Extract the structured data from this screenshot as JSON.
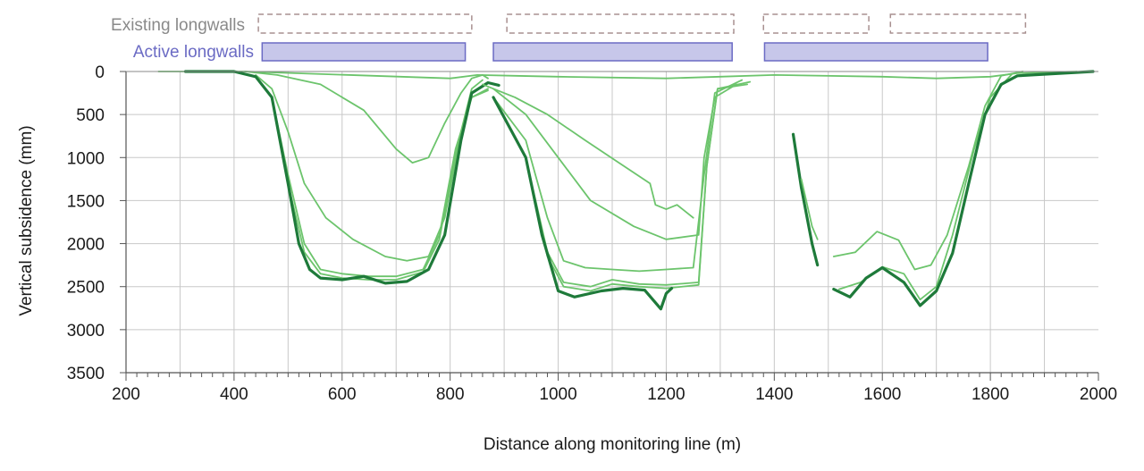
{
  "chart_data": {
    "type": "line",
    "title": "",
    "xlabel": "Distance along monitoring line (m)",
    "ylabel": "Vertical subsidence (mm)",
    "xlim": [
      200,
      2000
    ],
    "ylim": [
      0,
      3500
    ],
    "y_inverted": true,
    "grid": true,
    "x_ticks": [
      "200",
      "400",
      "600",
      "800",
      "1000",
      "1200",
      "1400",
      "1600",
      "1800",
      "2000"
    ],
    "y_ticks": [
      "0",
      "500",
      "1000",
      "1500",
      "2000",
      "2500",
      "3000",
      "3500"
    ],
    "legend": {
      "existing_label": "Existing longwalls",
      "active_label": "Active longwalls"
    },
    "existing_longwalls": [
      [
        445,
        840
      ],
      [
        905,
        1325
      ],
      [
        1380,
        1575
      ],
      [
        1615,
        1865
      ]
    ],
    "active_longwalls": [
      [
        452,
        828
      ],
      [
        880,
        1322
      ],
      [
        1382,
        1795
      ]
    ],
    "colors": {
      "existing_text": "#8a8a8a",
      "existing_box": "#a89090",
      "active_text": "#6b6bc4",
      "active_fill": "#c7c7ea",
      "active_stroke": "#6b6bc4",
      "light_green": "#6cc46c",
      "dark_green": "#1e7a3a",
      "grid": "#c8c8c8"
    },
    "series": [
      {
        "style": "light",
        "points": [
          [
            260,
            0
          ],
          [
            420,
            0
          ],
          [
            800,
            80
          ],
          [
            850,
            40
          ],
          [
            920,
            50
          ],
          [
            1000,
            60
          ],
          [
            1200,
            80
          ],
          [
            1300,
            60
          ],
          [
            1400,
            40
          ],
          [
            1600,
            60
          ],
          [
            1700,
            80
          ],
          [
            1800,
            60
          ],
          [
            1850,
            20
          ],
          [
            1960,
            0
          ]
        ]
      },
      {
        "style": "light",
        "points": [
          [
            420,
            0
          ],
          [
            480,
            40
          ],
          [
            560,
            150
          ],
          [
            640,
            450
          ],
          [
            700,
            900
          ],
          [
            730,
            1060
          ],
          [
            760,
            1000
          ],
          [
            790,
            600
          ],
          [
            820,
            250
          ],
          [
            840,
            80
          ],
          [
            860,
            40
          ],
          [
            870,
            80
          ]
        ]
      },
      {
        "style": "light",
        "points": [
          [
            440,
            40
          ],
          [
            470,
            200
          ],
          [
            500,
            700
          ],
          [
            530,
            1300
          ],
          [
            570,
            1700
          ],
          [
            620,
            1950
          ],
          [
            680,
            2150
          ],
          [
            720,
            2200
          ],
          [
            760,
            2150
          ],
          [
            790,
            1700
          ],
          [
            820,
            700
          ],
          [
            840,
            200
          ],
          [
            860,
            100
          ]
        ]
      },
      {
        "style": "light",
        "points": [
          [
            440,
            60
          ],
          [
            470,
            300
          ],
          [
            500,
            1200
          ],
          [
            530,
            2000
          ],
          [
            560,
            2300
          ],
          [
            600,
            2350
          ],
          [
            650,
            2380
          ],
          [
            700,
            2380
          ],
          [
            750,
            2300
          ],
          [
            780,
            1900
          ],
          [
            810,
            900
          ],
          [
            840,
            300
          ],
          [
            870,
            200
          ]
        ]
      },
      {
        "style": "light",
        "points": [
          [
            440,
            60
          ],
          [
            470,
            300
          ],
          [
            500,
            1300
          ],
          [
            530,
            2100
          ],
          [
            560,
            2350
          ],
          [
            600,
            2400
          ],
          [
            650,
            2420
          ],
          [
            700,
            2420
          ],
          [
            750,
            2330
          ],
          [
            780,
            1950
          ],
          [
            810,
            950
          ],
          [
            840,
            300
          ],
          [
            870,
            220
          ]
        ]
      },
      {
        "style": "dark",
        "points": [
          [
            310,
            0
          ],
          [
            400,
            0
          ],
          [
            440,
            60
          ],
          [
            470,
            300
          ],
          [
            500,
            1300
          ],
          [
            520,
            2000
          ],
          [
            540,
            2300
          ],
          [
            560,
            2400
          ],
          [
            600,
            2420
          ],
          [
            640,
            2380
          ],
          [
            680,
            2460
          ],
          [
            720,
            2440
          ],
          [
            760,
            2300
          ],
          [
            790,
            1900
          ],
          [
            820,
            800
          ],
          [
            840,
            250
          ],
          [
            870,
            130
          ],
          [
            890,
            160
          ]
        ]
      },
      {
        "style": "light",
        "points": [
          [
            860,
            150
          ],
          [
            920,
            300
          ],
          [
            980,
            500
          ],
          [
            1050,
            800
          ],
          [
            1110,
            1050
          ],
          [
            1170,
            1300
          ],
          [
            1180,
            1550
          ],
          [
            1200,
            1600
          ],
          [
            1220,
            1550
          ],
          [
            1250,
            1700
          ]
        ]
      },
      {
        "style": "light",
        "points": [
          [
            880,
            200
          ],
          [
            940,
            500
          ],
          [
            1000,
            1000
          ],
          [
            1060,
            1500
          ],
          [
            1140,
            1800
          ],
          [
            1200,
            1950
          ],
          [
            1260,
            1900
          ],
          [
            1270,
            1000
          ],
          [
            1290,
            300
          ],
          [
            1330,
            150
          ]
        ]
      },
      {
        "style": "light",
        "points": [
          [
            880,
            300
          ],
          [
            940,
            800
          ],
          [
            980,
            1700
          ],
          [
            1010,
            2200
          ],
          [
            1050,
            2280
          ],
          [
            1100,
            2300
          ],
          [
            1150,
            2320
          ],
          [
            1200,
            2300
          ],
          [
            1250,
            2280
          ],
          [
            1270,
            1200
          ],
          [
            1290,
            250
          ],
          [
            1340,
            100
          ]
        ]
      },
      {
        "style": "light",
        "points": [
          [
            880,
            300
          ],
          [
            940,
            1000
          ],
          [
            980,
            2100
          ],
          [
            1010,
            2450
          ],
          [
            1060,
            2500
          ],
          [
            1100,
            2420
          ],
          [
            1150,
            2470
          ],
          [
            1200,
            2480
          ],
          [
            1260,
            2450
          ],
          [
            1275,
            1100
          ],
          [
            1295,
            200
          ],
          [
            1350,
            150
          ]
        ]
      },
      {
        "style": "light",
        "points": [
          [
            880,
            300
          ],
          [
            940,
            1000
          ],
          [
            980,
            2150
          ],
          [
            1010,
            2500
          ],
          [
            1060,
            2550
          ],
          [
            1100,
            2470
          ],
          [
            1150,
            2500
          ],
          [
            1200,
            2520
          ],
          [
            1260,
            2480
          ],
          [
            1275,
            1100
          ],
          [
            1295,
            200
          ],
          [
            1355,
            120
          ]
        ]
      },
      {
        "style": "dark",
        "points": [
          [
            880,
            300
          ],
          [
            940,
            1000
          ],
          [
            970,
            1900
          ],
          [
            1000,
            2550
          ],
          [
            1030,
            2620
          ],
          [
            1080,
            2550
          ],
          [
            1120,
            2520
          ],
          [
            1160,
            2540
          ],
          [
            1190,
            2760
          ],
          [
            1200,
            2580
          ],
          [
            1210,
            2520
          ]
        ]
      },
      {
        "style": "dark",
        "points": [
          [
            1435,
            730
          ],
          [
            1450,
            1350
          ],
          [
            1470,
            2000
          ],
          [
            1480,
            2250
          ]
        ]
      },
      {
        "style": "light",
        "points": [
          [
            1450,
            1250
          ],
          [
            1470,
            1800
          ],
          [
            1480,
            1950
          ]
        ]
      },
      {
        "style": "light",
        "points": [
          [
            1510,
            2150
          ],
          [
            1550,
            2100
          ],
          [
            1590,
            1860
          ],
          [
            1630,
            1960
          ],
          [
            1660,
            2300
          ],
          [
            1690,
            2250
          ],
          [
            1720,
            1900
          ],
          [
            1760,
            1100
          ],
          [
            1790,
            400
          ],
          [
            1820,
            50
          ],
          [
            1860,
            0
          ]
        ]
      },
      {
        "style": "light",
        "points": [
          [
            1520,
            2530
          ],
          [
            1560,
            2450
          ],
          [
            1600,
            2270
          ],
          [
            1640,
            2350
          ],
          [
            1670,
            2650
          ],
          [
            1700,
            2500
          ],
          [
            1730,
            1900
          ],
          [
            1770,
            900
          ],
          [
            1800,
            300
          ],
          [
            1840,
            30
          ]
        ]
      },
      {
        "style": "dark",
        "points": [
          [
            1510,
            2530
          ],
          [
            1540,
            2620
          ],
          [
            1570,
            2400
          ],
          [
            1600,
            2280
          ],
          [
            1640,
            2450
          ],
          [
            1670,
            2720
          ],
          [
            1700,
            2550
          ],
          [
            1730,
            2110
          ],
          [
            1760,
            1300
          ],
          [
            1790,
            500
          ],
          [
            1820,
            150
          ],
          [
            1850,
            50
          ],
          [
            1990,
            0
          ]
        ]
      }
    ]
  }
}
